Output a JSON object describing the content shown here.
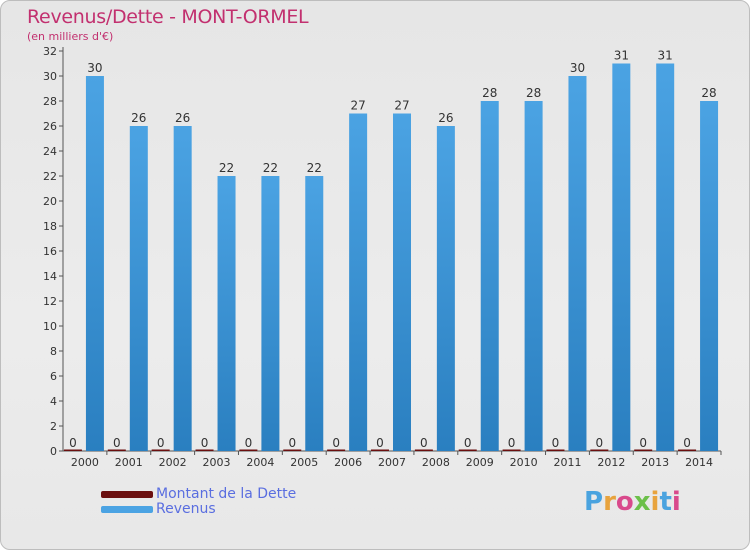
{
  "title": "Revenus/Dette - MONT-ORMEL",
  "subtitle": "(en milliers d'€)",
  "logo": {
    "text": "Proxiti",
    "colors": [
      "#4aa3df",
      "#e8a33d",
      "#d94a8c",
      "#6cc04a",
      "#e8a33d",
      "#4aa3df",
      "#d94a8c"
    ]
  },
  "colors": {
    "dette": "#6b0f0f",
    "revenus": "#4ba3e3",
    "revenus_dark": "#2a7fc0",
    "axis_text": "#333333",
    "title": "#c2306f"
  },
  "chart_data": {
    "type": "bar",
    "title": "Revenus/Dette - MONT-ORMEL",
    "subtitle": "(en milliers d'€)",
    "categories": [
      "2000",
      "2001",
      "2002",
      "2003",
      "2004",
      "2005",
      "2006",
      "2007",
      "2008",
      "2009",
      "2010",
      "2011",
      "2012",
      "2013",
      "2014"
    ],
    "series": [
      {
        "name": "Montant de la Dette",
        "values": [
          0,
          0,
          0,
          0,
          0,
          0,
          0,
          0,
          0,
          0,
          0,
          0,
          0,
          0,
          0
        ]
      },
      {
        "name": "Revenus",
        "values": [
          30,
          26,
          26,
          22,
          22,
          22,
          27,
          27,
          26,
          28,
          28,
          30,
          31,
          31,
          28
        ]
      }
    ],
    "yticks": [
      0,
      2,
      4,
      6,
      8,
      10,
      12,
      14,
      16,
      18,
      20,
      22,
      24,
      26,
      28,
      30,
      32
    ],
    "ylim": [
      0,
      32
    ],
    "grid": false,
    "legend_position": "bottom-left"
  }
}
